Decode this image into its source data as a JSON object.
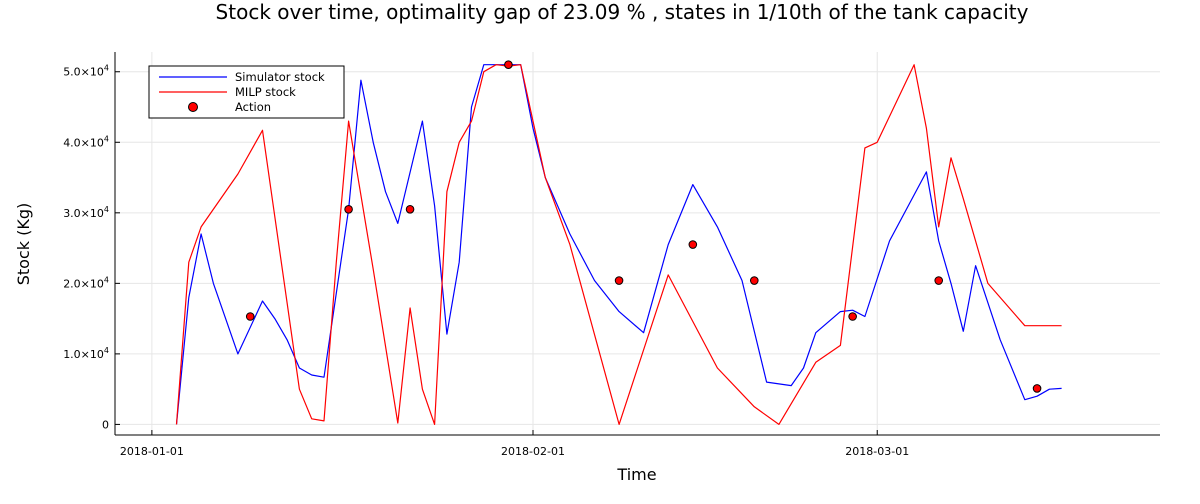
{
  "chart_data": {
    "type": "line",
    "title": "Stock over time, optimality gap of 23.09 % , states in 1/10th of the tank capacity",
    "xlabel": "Time",
    "ylabel": "Stock (Kg)",
    "x_ticks": [
      "2018-01-01",
      "2018-02-01",
      "2018-03-01"
    ],
    "y_ticks": [
      "0",
      "1.0×10⁴",
      "2.0×10⁴",
      "3.0×10⁴",
      "4.0×10⁴",
      "5.0×10⁴"
    ],
    "y_tick_values": [
      0,
      10000,
      20000,
      30000,
      40000,
      50000
    ],
    "x_tick_values": [
      "2018-01-01",
      "2018-02-01",
      "2018-03-01"
    ],
    "xlim": [
      "2017-12-29",
      "2018-03-24"
    ],
    "ylim": [
      -1500,
      52800
    ],
    "grid": true,
    "legend_position": "top-left",
    "series": [
      {
        "name": "Simulator stock",
        "color": "#0000ff",
        "style": "line",
        "x": [
          "2018-01-03",
          "2018-01-04",
          "2018-01-05",
          "2018-01-06",
          "2018-01-08",
          "2018-01-10",
          "2018-01-11",
          "2018-01-12",
          "2018-01-13",
          "2018-01-14",
          "2018-01-15",
          "2018-01-17",
          "2018-01-18",
          "2018-01-19",
          "2018-01-20",
          "2018-01-21",
          "2018-01-23",
          "2018-01-24",
          "2018-01-25",
          "2018-01-26",
          "2018-01-27",
          "2018-01-28",
          "2018-01-29",
          "2018-01-30",
          "2018-01-31",
          "2018-02-01",
          "2018-02-02",
          "2018-02-04",
          "2018-02-06",
          "2018-02-08",
          "2018-02-10",
          "2018-02-12",
          "2018-02-14",
          "2018-02-16",
          "2018-02-18",
          "2018-02-20",
          "2018-02-22",
          "2018-02-23",
          "2018-02-24",
          "2018-02-26",
          "2018-02-27",
          "2018-02-28",
          "2018-03-02",
          "2018-03-05",
          "2018-03-06",
          "2018-03-07",
          "2018-03-08",
          "2018-03-09",
          "2018-03-11",
          "2018-03-13",
          "2018-03-14",
          "2018-03-15",
          "2018-03-16"
        ],
        "values": [
          0,
          18000,
          27000,
          20000,
          10000,
          17500,
          15000,
          12000,
          8000,
          7000,
          6700,
          30500,
          48800,
          40000,
          33000,
          28500,
          43000,
          31000,
          12800,
          23000,
          45000,
          51000,
          51000,
          51000,
          51000,
          42000,
          35000,
          27000,
          20400,
          16000,
          13000,
          25500,
          34000,
          28000,
          20400,
          6000,
          5500,
          8000,
          13000,
          16000,
          16200,
          15300,
          26000,
          35800,
          26000,
          20000,
          13200,
          22500,
          12000,
          3500,
          4000,
          5000,
          5100
        ]
      },
      {
        "name": "MILP stock",
        "color": "#ff0000",
        "style": "line",
        "x": [
          "2018-01-03",
          "2018-01-04",
          "2018-01-05",
          "2018-01-08",
          "2018-01-10",
          "2018-01-13",
          "2018-01-14",
          "2018-01-15",
          "2018-01-16",
          "2018-01-17",
          "2018-01-19",
          "2018-01-21",
          "2018-01-22",
          "2018-01-23",
          "2018-01-24",
          "2018-01-25",
          "2018-01-26",
          "2018-01-27",
          "2018-01-28",
          "2018-01-29",
          "2018-01-30",
          "2018-01-31",
          "2018-02-02",
          "2018-02-04",
          "2018-02-08",
          "2018-02-12",
          "2018-02-16",
          "2018-02-19",
          "2018-02-21",
          "2018-02-24",
          "2018-02-26",
          "2018-02-28",
          "2018-03-01",
          "2018-03-04",
          "2018-03-05",
          "2018-03-06",
          "2018-03-07",
          "2018-03-08",
          "2018-03-10",
          "2018-03-13",
          "2018-03-16"
        ],
        "values": [
          0,
          23000,
          28000,
          35500,
          41700,
          5000,
          800,
          500,
          23000,
          43000,
          22000,
          200,
          16500,
          5000,
          0,
          33000,
          40000,
          43000,
          50000,
          51000,
          50800,
          51000,
          35000,
          25500,
          0,
          21200,
          8000,
          2500,
          0,
          8800,
          11200,
          39200,
          40000,
          51000,
          42000,
          28000,
          37800,
          32000,
          20000,
          14000,
          14000
        ]
      },
      {
        "name": "Action",
        "color": "#ff0000",
        "style": "markers",
        "x": [
          "2018-01-09",
          "2018-01-17",
          "2018-01-22",
          "2018-01-30",
          "2018-02-08",
          "2018-02-14",
          "2018-02-19",
          "2018-02-27",
          "2018-03-06",
          "2018-03-14"
        ],
        "values": [
          15300,
          30500,
          30500,
          51000,
          20400,
          25500,
          20400,
          15300,
          20400,
          5100
        ]
      }
    ]
  }
}
